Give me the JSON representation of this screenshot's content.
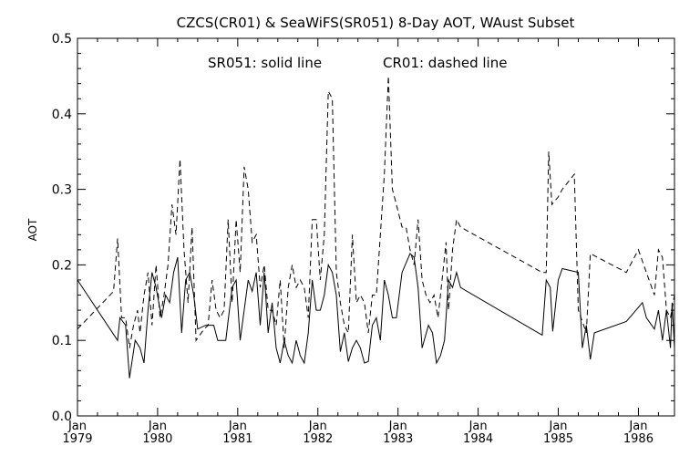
{
  "chart_data": {
    "type": "line",
    "title": "CZCS(CR01) & SeaWiFS(SR051) 8-Day AOT, WAust Subset",
    "annotation": {
      "solid": "SR051: solid line",
      "dashed": "CR01: dashed line"
    },
    "ylabel": "AOT",
    "ylim": [
      0.0,
      0.5
    ],
    "yticks": [
      "0.0",
      "0.1",
      "0.2",
      "0.3",
      "0.4",
      "0.5"
    ],
    "xlim": [
      1979.0,
      1986.45
    ],
    "xticks": [
      {
        "x": 1979,
        "top": "Jan",
        "bottom": "1979"
      },
      {
        "x": 1980,
        "top": "Jan",
        "bottom": "1980"
      },
      {
        "x": 1981,
        "top": "Jan",
        "bottom": "1981"
      },
      {
        "x": 1982,
        "top": "Jan",
        "bottom": "1982"
      },
      {
        "x": 1983,
        "top": "Jan",
        "bottom": "1983"
      },
      {
        "x": 1984,
        "top": "Jan",
        "bottom": "1984"
      },
      {
        "x": 1985,
        "top": "Jan",
        "bottom": "1985"
      },
      {
        "x": 1986,
        "top": "Jan",
        "bottom": "1986"
      }
    ],
    "grid": false,
    "series": [
      {
        "name": "SR051",
        "style": "solid",
        "color": "#000000",
        "points": [
          [
            1979.0,
            0.18
          ],
          [
            1979.5,
            0.1
          ],
          [
            1979.53,
            0.13
          ],
          [
            1979.6,
            0.12
          ],
          [
            1979.65,
            0.05
          ],
          [
            1979.72,
            0.1
          ],
          [
            1979.78,
            0.09
          ],
          [
            1979.83,
            0.07
          ],
          [
            1979.88,
            0.14
          ],
          [
            1979.93,
            0.19
          ],
          [
            1979.98,
            0.17
          ],
          [
            1980.05,
            0.13
          ],
          [
            1980.1,
            0.16
          ],
          [
            1980.15,
            0.15
          ],
          [
            1980.2,
            0.19
          ],
          [
            1980.25,
            0.21
          ],
          [
            1980.3,
            0.11
          ],
          [
            1980.35,
            0.18
          ],
          [
            1980.4,
            0.19
          ],
          [
            1980.45,
            0.16
          ],
          [
            1980.5,
            0.115
          ],
          [
            1980.6,
            0.12
          ],
          [
            1980.7,
            0.12
          ],
          [
            1980.75,
            0.1
          ],
          [
            1980.85,
            0.1
          ],
          [
            1980.93,
            0.17
          ],
          [
            1980.98,
            0.18
          ],
          [
            1981.03,
            0.1
          ],
          [
            1981.08,
            0.14
          ],
          [
            1981.13,
            0.18
          ],
          [
            1981.18,
            0.165
          ],
          [
            1981.23,
            0.19
          ],
          [
            1981.28,
            0.12
          ],
          [
            1981.33,
            0.19
          ],
          [
            1981.38,
            0.11
          ],
          [
            1981.43,
            0.15
          ],
          [
            1981.48,
            0.09
          ],
          [
            1981.53,
            0.07
          ],
          [
            1981.58,
            0.1
          ],
          [
            1981.63,
            0.08
          ],
          [
            1981.68,
            0.07
          ],
          [
            1981.73,
            0.1
          ],
          [
            1981.78,
            0.08
          ],
          [
            1981.83,
            0.07
          ],
          [
            1981.88,
            0.11
          ],
          [
            1981.93,
            0.18
          ],
          [
            1981.98,
            0.14
          ],
          [
            1982.03,
            0.14
          ],
          [
            1982.08,
            0.16
          ],
          [
            1982.13,
            0.2
          ],
          [
            1982.18,
            0.19
          ],
          [
            1982.23,
            0.16
          ],
          [
            1982.28,
            0.085
          ],
          [
            1982.33,
            0.11
          ],
          [
            1982.38,
            0.072
          ],
          [
            1982.43,
            0.09
          ],
          [
            1982.48,
            0.1
          ],
          [
            1982.53,
            0.09
          ],
          [
            1982.58,
            0.07
          ],
          [
            1982.63,
            0.072
          ],
          [
            1982.68,
            0.12
          ],
          [
            1982.73,
            0.13
          ],
          [
            1982.78,
            0.1
          ],
          [
            1982.83,
            0.18
          ],
          [
            1982.88,
            0.16
          ],
          [
            1982.93,
            0.13
          ],
          [
            1982.98,
            0.13
          ],
          [
            1983.05,
            0.19
          ],
          [
            1983.15,
            0.215
          ],
          [
            1983.2,
            0.21
          ],
          [
            1983.25,
            0.17
          ],
          [
            1983.3,
            0.09
          ],
          [
            1983.38,
            0.12
          ],
          [
            1983.43,
            0.11
          ],
          [
            1983.48,
            0.07
          ],
          [
            1983.53,
            0.08
          ],
          [
            1983.58,
            0.1
          ],
          [
            1983.63,
            0.18
          ],
          [
            1983.68,
            0.17
          ],
          [
            1983.73,
            0.19
          ],
          [
            1983.78,
            0.17
          ],
          [
            1984.8,
            0.107
          ],
          [
            1984.85,
            0.18
          ],
          [
            1984.9,
            0.17
          ],
          [
            1984.93,
            0.112
          ],
          [
            1985.0,
            0.18
          ],
          [
            1985.05,
            0.195
          ],
          [
            1985.25,
            0.19
          ],
          [
            1985.3,
            0.09
          ],
          [
            1985.35,
            0.12
          ],
          [
            1985.4,
            0.075
          ],
          [
            1985.45,
            0.11
          ],
          [
            1985.85,
            0.125
          ],
          [
            1986.05,
            0.15
          ],
          [
            1986.1,
            0.13
          ],
          [
            1986.2,
            0.115
          ],
          [
            1986.25,
            0.14
          ],
          [
            1986.3,
            0.1
          ],
          [
            1986.35,
            0.14
          ],
          [
            1986.4,
            0.09
          ],
          [
            1986.42,
            0.15
          ],
          [
            1986.45,
            0.09
          ]
        ]
      },
      {
        "name": "CR01",
        "style": "dashed",
        "color": "#000000",
        "points": [
          [
            1979.0,
            0.115
          ],
          [
            1979.45,
            0.165
          ],
          [
            1979.5,
            0.235
          ],
          [
            1979.55,
            0.13
          ],
          [
            1979.6,
            0.13
          ],
          [
            1979.65,
            0.09
          ],
          [
            1979.7,
            0.12
          ],
          [
            1979.75,
            0.14
          ],
          [
            1979.78,
            0.11
          ],
          [
            1979.83,
            0.16
          ],
          [
            1979.88,
            0.19
          ],
          [
            1979.93,
            0.12
          ],
          [
            1979.98,
            0.2
          ],
          [
            1980.03,
            0.13
          ],
          [
            1980.08,
            0.16
          ],
          [
            1980.13,
            0.2
          ],
          [
            1980.18,
            0.28
          ],
          [
            1980.23,
            0.24
          ],
          [
            1980.28,
            0.34
          ],
          [
            1980.33,
            0.22
          ],
          [
            1980.38,
            0.15
          ],
          [
            1980.43,
            0.25
          ],
          [
            1980.48,
            0.1
          ],
          [
            1980.58,
            0.115
          ],
          [
            1980.63,
            0.12
          ],
          [
            1980.68,
            0.18
          ],
          [
            1980.73,
            0.14
          ],
          [
            1980.78,
            0.13
          ],
          [
            1980.83,
            0.14
          ],
          [
            1980.88,
            0.26
          ],
          [
            1980.93,
            0.15
          ],
          [
            1980.98,
            0.26
          ],
          [
            1981.03,
            0.19
          ],
          [
            1981.08,
            0.33
          ],
          [
            1981.13,
            0.3
          ],
          [
            1981.18,
            0.23
          ],
          [
            1981.23,
            0.24
          ],
          [
            1981.28,
            0.17
          ],
          [
            1981.33,
            0.2
          ],
          [
            1981.38,
            0.14
          ],
          [
            1981.43,
            0.14
          ],
          [
            1981.48,
            0.12
          ],
          [
            1981.53,
            0.18
          ],
          [
            1981.58,
            0.09
          ],
          [
            1981.63,
            0.17
          ],
          [
            1981.68,
            0.2
          ],
          [
            1981.73,
            0.17
          ],
          [
            1981.78,
            0.18
          ],
          [
            1981.83,
            0.17
          ],
          [
            1981.88,
            0.13
          ],
          [
            1981.93,
            0.26
          ],
          [
            1981.98,
            0.26
          ],
          [
            1982.03,
            0.18
          ],
          [
            1982.08,
            0.24
          ],
          [
            1982.13,
            0.43
          ],
          [
            1982.18,
            0.42
          ],
          [
            1982.23,
            0.19
          ],
          [
            1982.28,
            0.15
          ],
          [
            1982.33,
            0.12
          ],
          [
            1982.38,
            0.11
          ],
          [
            1982.43,
            0.24
          ],
          [
            1982.48,
            0.15
          ],
          [
            1982.53,
            0.16
          ],
          [
            1982.58,
            0.15
          ],
          [
            1982.63,
            0.11
          ],
          [
            1982.68,
            0.16
          ],
          [
            1982.73,
            0.16
          ],
          [
            1982.78,
            0.24
          ],
          [
            1982.83,
            0.32
          ],
          [
            1982.88,
            0.45
          ],
          [
            1982.93,
            0.3
          ],
          [
            1982.98,
            0.28
          ],
          [
            1983.05,
            0.25
          ],
          [
            1983.1,
            0.25
          ],
          [
            1983.15,
            0.22
          ],
          [
            1983.2,
            0.2
          ],
          [
            1983.25,
            0.26
          ],
          [
            1983.3,
            0.18
          ],
          [
            1983.35,
            0.16
          ],
          [
            1983.4,
            0.15
          ],
          [
            1983.45,
            0.16
          ],
          [
            1983.5,
            0.13
          ],
          [
            1983.55,
            0.18
          ],
          [
            1983.6,
            0.23
          ],
          [
            1983.63,
            0.14
          ],
          [
            1983.68,
            0.22
          ],
          [
            1983.73,
            0.26
          ],
          [
            1983.78,
            0.25
          ],
          [
            1984.8,
            0.19
          ],
          [
            1984.85,
            0.19
          ],
          [
            1984.88,
            0.35
          ],
          [
            1984.92,
            0.28
          ],
          [
            1985.0,
            0.29
          ],
          [
            1985.05,
            0.3
          ],
          [
            1985.2,
            0.32
          ],
          [
            1985.25,
            0.14
          ],
          [
            1985.3,
            0.125
          ],
          [
            1985.35,
            0.11
          ],
          [
            1985.4,
            0.215
          ],
          [
            1985.85,
            0.19
          ],
          [
            1986.0,
            0.22
          ],
          [
            1986.1,
            0.19
          ],
          [
            1986.2,
            0.16
          ],
          [
            1986.25,
            0.22
          ],
          [
            1986.3,
            0.21
          ],
          [
            1986.35,
            0.14
          ],
          [
            1986.4,
            0.13
          ],
          [
            1986.45,
            0.16
          ]
        ]
      }
    ]
  }
}
